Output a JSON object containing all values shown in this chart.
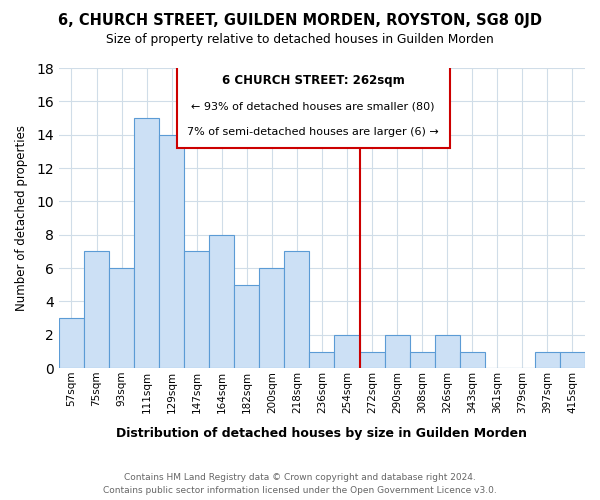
{
  "title": "6, CHURCH STREET, GUILDEN MORDEN, ROYSTON, SG8 0JD",
  "subtitle": "Size of property relative to detached houses in Guilden Morden",
  "xlabel": "Distribution of detached houses by size in Guilden Morden",
  "ylabel": "Number of detached properties",
  "categories": [
    "57sqm",
    "75sqm",
    "93sqm",
    "111sqm",
    "129sqm",
    "147sqm",
    "164sqm",
    "182sqm",
    "200sqm",
    "218sqm",
    "236sqm",
    "254sqm",
    "272sqm",
    "290sqm",
    "308sqm",
    "326sqm",
    "343sqm",
    "361sqm",
    "379sqm",
    "397sqm",
    "415sqm"
  ],
  "values": [
    3,
    7,
    6,
    15,
    14,
    7,
    8,
    5,
    6,
    7,
    1,
    2,
    1,
    2,
    1,
    2,
    1,
    0,
    0,
    1,
    1
  ],
  "bar_color": "#cce0f5",
  "bar_edge_color": "#5b9bd5",
  "vline_x": 11.5,
  "vline_color": "#cc0000",
  "annotation_title": "6 CHURCH STREET: 262sqm",
  "annotation_line1": "← 93% of detached houses are smaller (80)",
  "annotation_line2": "7% of semi-detached houses are larger (6) →",
  "annotation_box_color": "#ffffff",
  "annotation_box_edge": "#cc0000",
  "ylim": [
    0,
    18
  ],
  "yticks": [
    0,
    2,
    4,
    6,
    8,
    10,
    12,
    14,
    16,
    18
  ],
  "footer_line1": "Contains HM Land Registry data © Crown copyright and database right 2024.",
  "footer_line2": "Contains public sector information licensed under the Open Government Licence v3.0.",
  "background_color": "#ffffff",
  "grid_color": "#d0dde8"
}
